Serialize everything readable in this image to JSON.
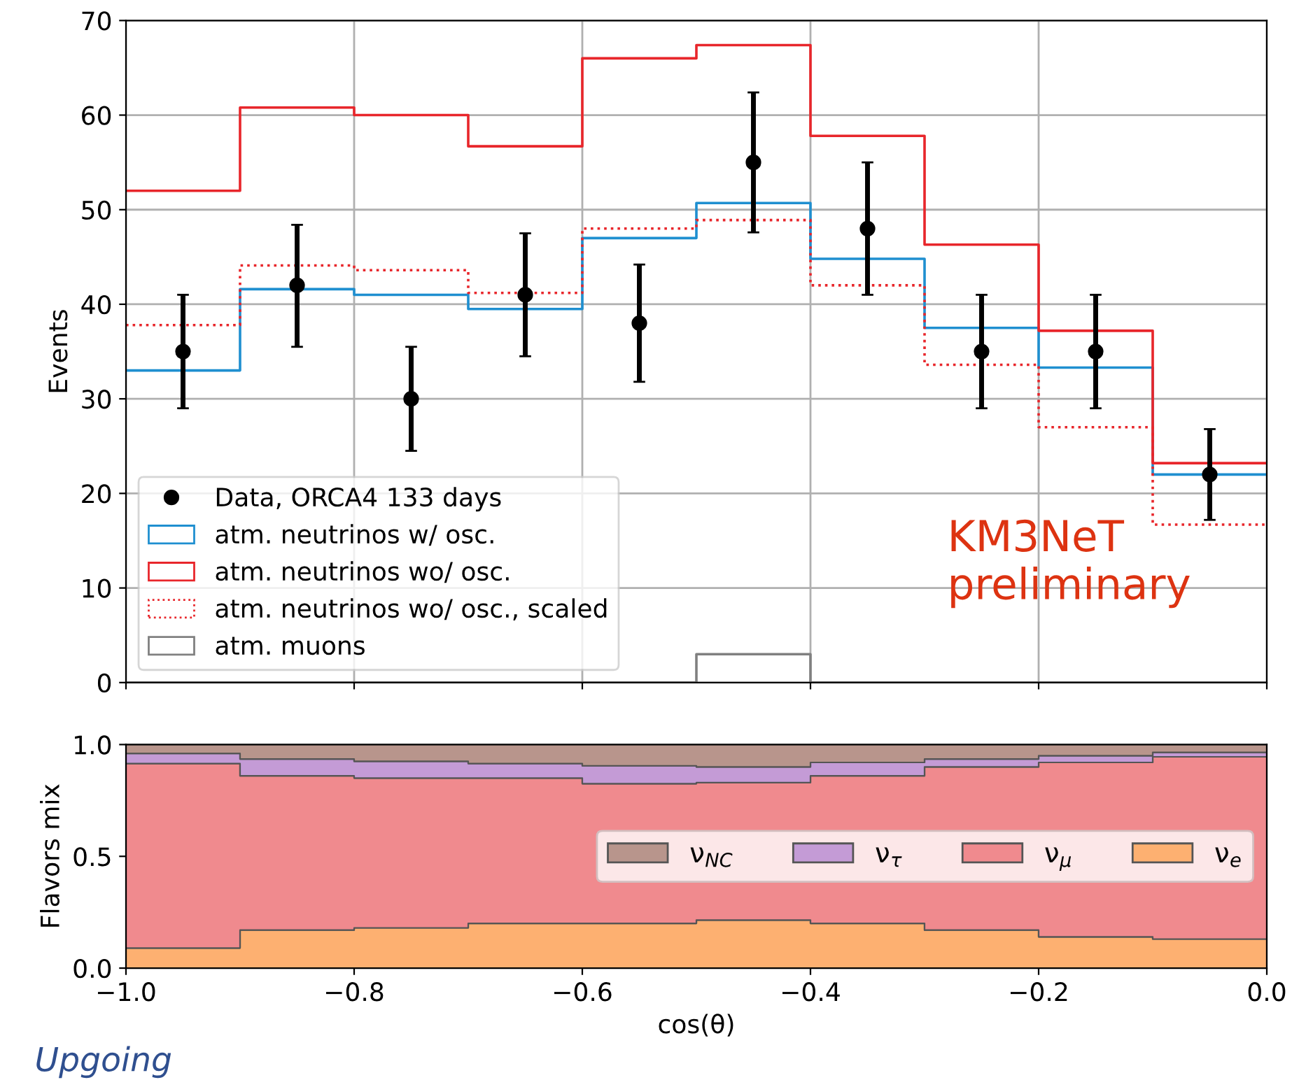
{
  "chart_data": [
    {
      "type": "step",
      "ylabel": "Events",
      "xlim": [
        -1.0,
        0.0
      ],
      "xticks": [
        {
          "value": -1.0,
          "label": null
        },
        {
          "value": -0.8,
          "label": null
        },
        {
          "value": -0.6,
          "label": null
        },
        {
          "value": -0.4,
          "label": null
        },
        {
          "value": -0.2,
          "label": null
        },
        {
          "value": 0.0,
          "label": null
        }
      ],
      "ylim": [
        0,
        70
      ],
      "yticks": [
        0,
        10,
        20,
        30,
        40,
        50,
        60,
        70
      ],
      "grid": true,
      "legend": "bottom left",
      "tick_labels": "y",
      "annotations": [
        "KM3NeT\npreliminary"
      ],
      "series": [
        {
          "name": "Data, ORCA4 133 days",
          "type": "scatter",
          "color": "#000000",
          "marker": "circle",
          "x": [
            -0.95,
            -0.85,
            -0.75,
            -0.65,
            -0.55,
            -0.45,
            -0.35,
            -0.25,
            -0.15,
            -0.05
          ],
          "values": [
            35,
            42,
            30,
            41,
            38,
            55,
            48,
            35,
            35,
            22
          ],
          "errors": [
            [
              29,
              41
            ],
            [
              35.5,
              48.4
            ],
            [
              24.5,
              35.5
            ],
            [
              34.5,
              47.5
            ],
            [
              31.8,
              44.2
            ],
            [
              47.6,
              62.4
            ],
            [
              41,
              55
            ],
            [
              29,
              41
            ],
            [
              29,
              41
            ],
            [
              17.2,
              26.8
            ]
          ]
        },
        {
          "name": "atm. neutrinos w/ osc.",
          "type": "step",
          "color": "#1f8fd0",
          "line_style": "solid",
          "x": [
            -1.0,
            -0.9,
            -0.8,
            -0.7,
            -0.6,
            -0.5,
            -0.4,
            -0.3,
            -0.2,
            -0.1,
            0.0
          ],
          "values": [
            33,
            41.6,
            41,
            39.5,
            47,
            50.7,
            44.8,
            37.5,
            33.3,
            22,
            22
          ]
        },
        {
          "name": "atm. neutrinos wo/ osc.",
          "type": "step",
          "color": "#e8262b",
          "line_style": "solid",
          "x": [
            -1.0,
            -0.9,
            -0.8,
            -0.7,
            -0.6,
            -0.5,
            -0.4,
            -0.3,
            -0.2,
            -0.1,
            0.0
          ],
          "values": [
            52,
            60.8,
            60,
            56.7,
            66,
            67.4,
            57.8,
            46.3,
            37.2,
            23.2,
            23.2
          ]
        },
        {
          "name": "atm. neutrinos wo/ osc., scaled",
          "type": "step",
          "color": "#e8262b",
          "line_style": "dotted",
          "x": [
            -1.0,
            -0.9,
            -0.8,
            -0.7,
            -0.6,
            -0.5,
            -0.4,
            -0.3,
            -0.2,
            -0.1,
            0.0
          ],
          "values": [
            37.8,
            44.1,
            43.6,
            41.2,
            48,
            48.9,
            42,
            33.6,
            27,
            16.7,
            16.7
          ]
        },
        {
          "name": "atm. muons",
          "type": "step",
          "color": "#808080",
          "line_style": "solid",
          "x": [
            -1.0,
            -0.9,
            -0.8,
            -0.7,
            -0.6,
            -0.5,
            -0.4,
            -0.3,
            -0.2,
            -0.1,
            0.0
          ],
          "values": [
            0,
            0,
            0,
            0,
            0,
            3,
            0,
            0,
            0,
            0,
            0
          ]
        }
      ]
    },
    {
      "type": "area",
      "stacked": true,
      "ylabel": "Flavors mix",
      "xlabel": "cos(θ)",
      "x": [
        -1.0,
        -0.9,
        -0.8,
        -0.7,
        -0.6,
        -0.5,
        -0.4,
        -0.3,
        -0.2,
        -0.1,
        0.0
      ],
      "xlim": [
        -1.0,
        0.0
      ],
      "xticks": [
        {
          "value": -1.0,
          "label": "−1.0"
        },
        {
          "value": -0.8,
          "label": "−0.8"
        },
        {
          "value": -0.6,
          "label": "−0.6"
        },
        {
          "value": -0.4,
          "label": "−0.4"
        },
        {
          "value": -0.2,
          "label": "−0.2"
        },
        {
          "value": 0.0,
          "label": "0.0"
        }
      ],
      "ylim": [
        0,
        1
      ],
      "yticks": [
        {
          "value": 0,
          "label": "0.0"
        },
        {
          "value": 0.5,
          "label": "0.5"
        },
        {
          "value": 1,
          "label": "1.0"
        }
      ],
      "legend": "right",
      "annotations": [
        "Upgoing"
      ],
      "series": [
        {
          "name": "ν$_{e}$",
          "color": "#fdb071",
          "values": [
            0.09,
            0.17,
            0.18,
            0.2,
            0.2,
            0.215,
            0.2,
            0.17,
            0.14,
            0.13,
            0.13
          ]
        },
        {
          "name": "ν$_{μ}$",
          "color": "#f08a8e",
          "values": [
            0.825,
            0.69,
            0.67,
            0.65,
            0.625,
            0.615,
            0.66,
            0.73,
            0.78,
            0.815,
            0.815
          ]
        },
        {
          "name": "ν$_{τ}$",
          "color": "#c49bd6",
          "values": [
            0.045,
            0.075,
            0.075,
            0.065,
            0.08,
            0.07,
            0.06,
            0.035,
            0.03,
            0.02,
            0.02
          ]
        },
        {
          "name": "ν$_{NC}$",
          "color": "#b8958c",
          "values": [
            0.04,
            0.065,
            0.075,
            0.085,
            0.095,
            0.1,
            0.08,
            0.065,
            0.05,
            0.035,
            0.035
          ]
        }
      ]
    }
  ]
}
